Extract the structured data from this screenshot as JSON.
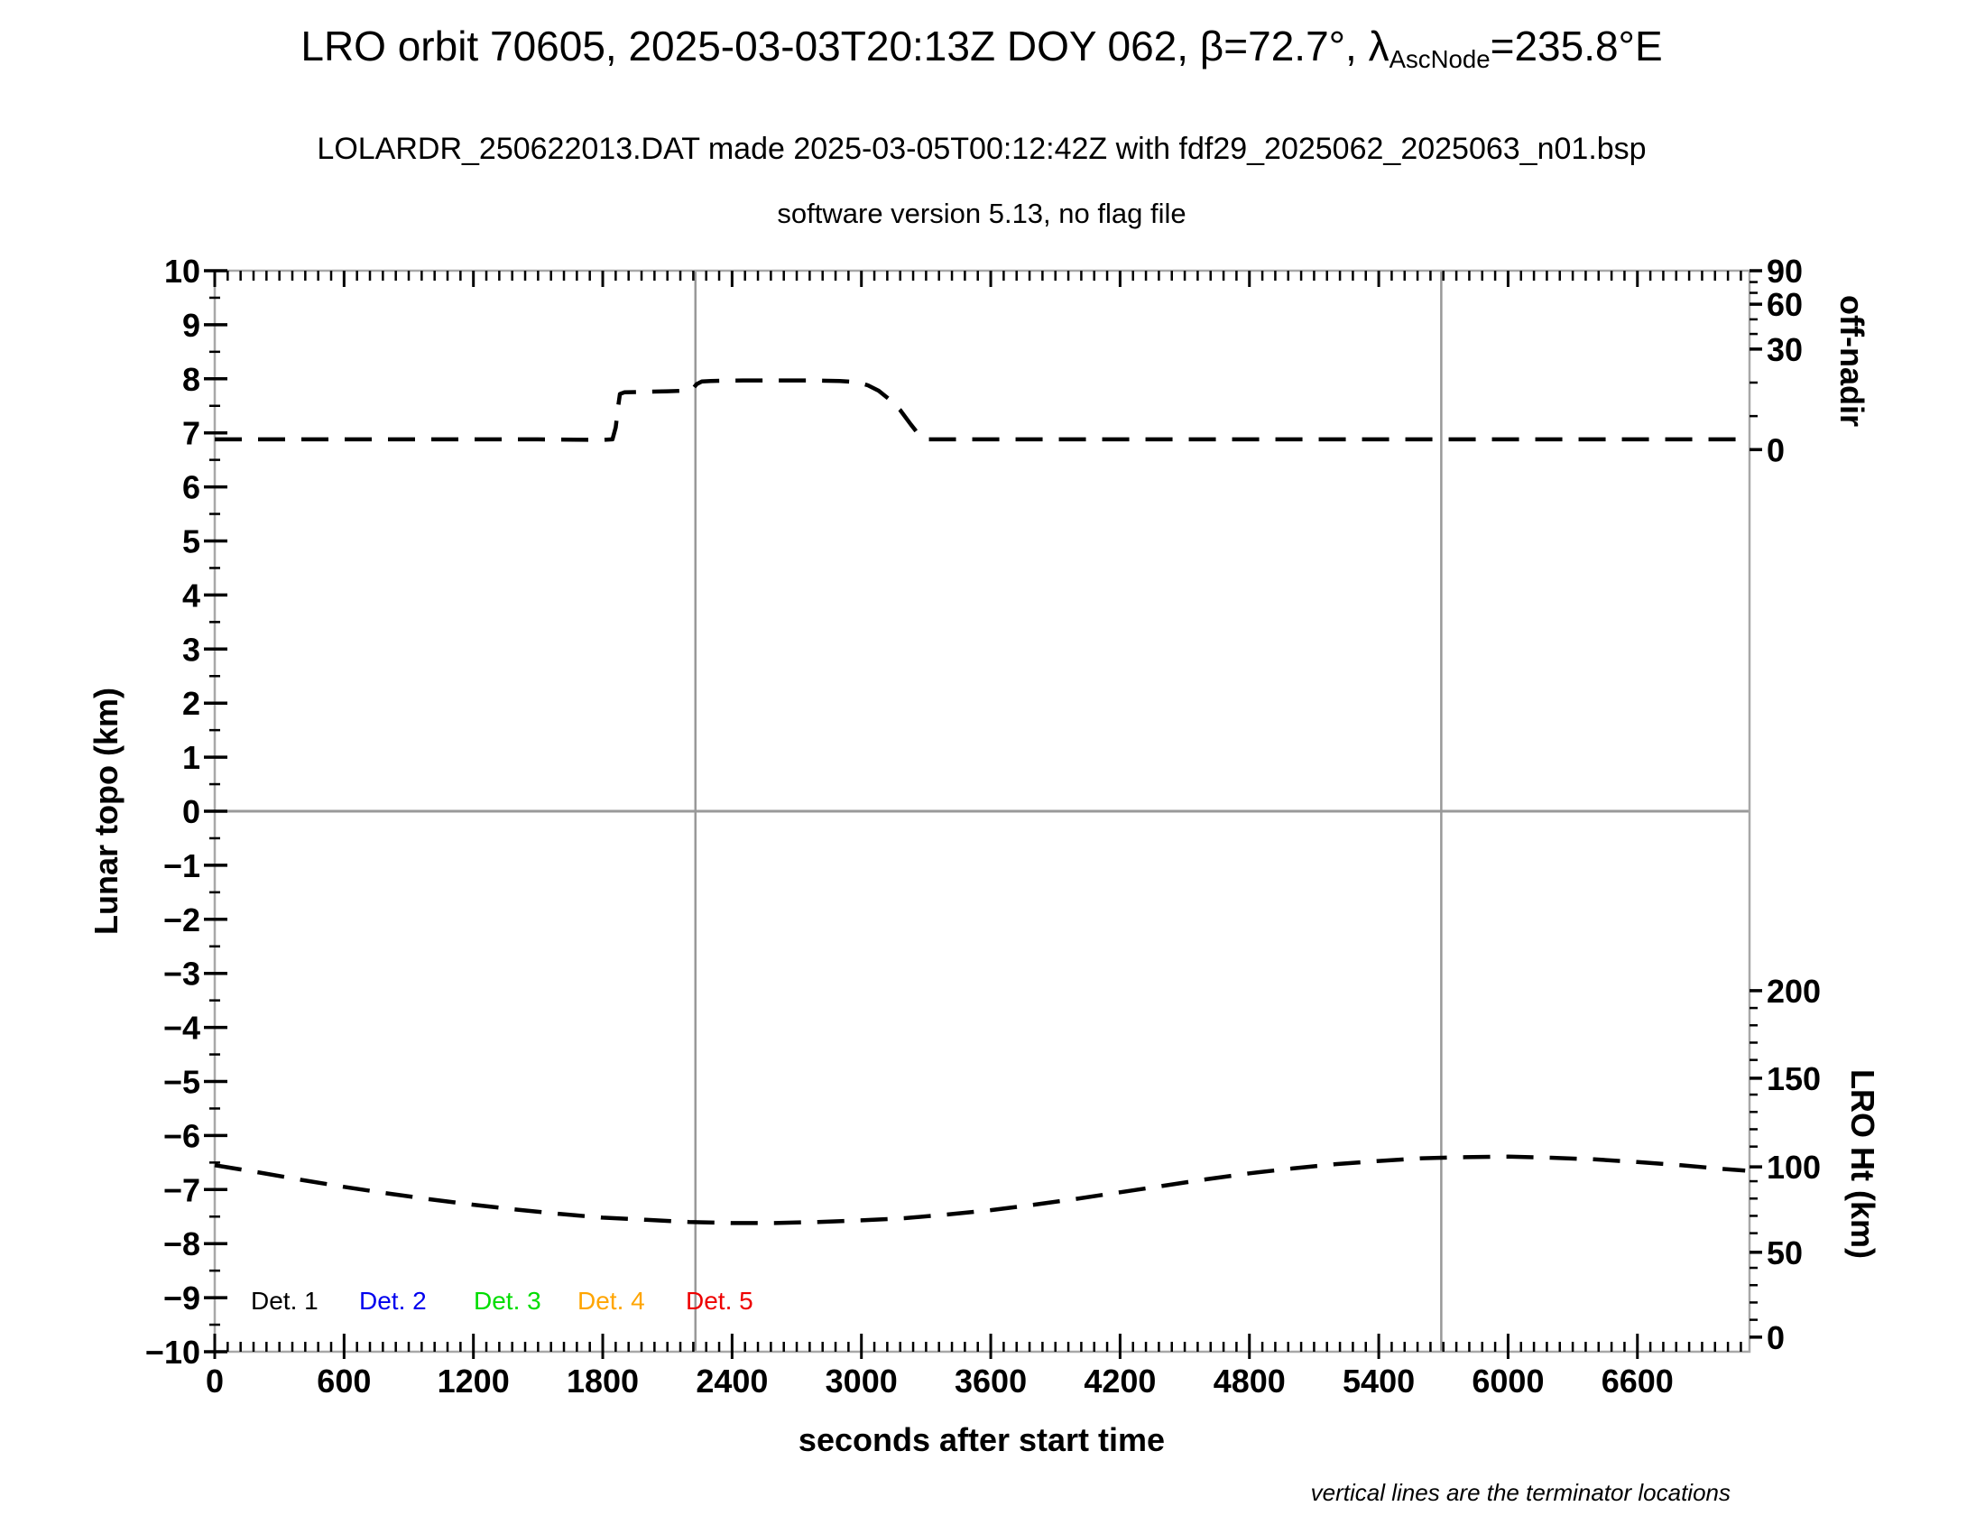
{
  "header": {
    "title_part1": "LRO orbit 70605, 2025-03-03T20:13Z DOY 062, β=72.7°, λ",
    "title_sub": "AscNode",
    "title_part2": "=235.8°E",
    "subtitle": "LOLARDR_250622013.DAT made 2025-03-05T00:12:42Z with fdf29_2025062_2025063_n01.bsp",
    "version_line": "software version 5.13, no flag file"
  },
  "chart_data": {
    "type": "line",
    "title": "LRO orbit 70605, 2025-03-03T20:13Z DOY 062, beta=72.7deg, lambda_AscNode=235.8degE",
    "xlabel": "seconds after start time",
    "ylabel_left": "Lunar topo (km)",
    "ylabel_right_top": "off-nadir",
    "ylabel_right_bottom": "LRO Ht (km)",
    "note": "vertical lines are the terminator locations",
    "grid": false,
    "x_axis": {
      "range": [
        0,
        7120
      ],
      "major_tick_step": 600,
      "minor_tick_step": 60,
      "major_ticks": [
        0,
        600,
        1200,
        1800,
        2400,
        3000,
        3600,
        4200,
        4800,
        5400,
        6000,
        6600
      ]
    },
    "y_axis_left": {
      "range": [
        -10,
        10
      ],
      "major_tick_step": 1,
      "minor_tick_step": 0.5,
      "major_ticks": [
        10,
        9,
        8,
        7,
        6,
        5,
        4,
        3,
        2,
        1,
        0,
        -1,
        -2,
        -3,
        -4,
        -5,
        -6,
        -7,
        -8,
        -9,
        -10
      ]
    },
    "y_axis_right_top": {
      "unit": "degrees off-nadir",
      "nonlinear": true,
      "ticks": [
        {
          "label": "90",
          "topo": 10.0
        },
        {
          "label": "60",
          "topo": 9.38
        },
        {
          "label": "30",
          "topo": 8.55
        },
        {
          "label": "0",
          "topo": 6.69
        }
      ],
      "minor_ticks_topo": [
        9.79,
        9.59,
        9.1,
        8.83,
        7.93,
        7.31
      ]
    },
    "y_axis_right_bottom": {
      "unit": "km",
      "nonlinear": false,
      "ticks": [
        {
          "label": "200",
          "topo": -3.32
        },
        {
          "label": "150",
          "topo": -4.94
        },
        {
          "label": "100",
          "topo": -6.58
        },
        {
          "label": "50",
          "topo": -8.16
        },
        {
          "label": "0",
          "topo": -9.73
        }
      ],
      "minor_step_km": 10,
      "km_per_topo_unit": 31.2
    },
    "terminator_lines_s": [
      2230,
      5690
    ],
    "zero_line_topo": 0,
    "series": [
      {
        "name": "off-nadir angle (plotted on Lunar topo axis)",
        "style": "dashed",
        "color": "#000000",
        "readings_deg": {
          "baseline": 3,
          "first_plateau": 17.5,
          "max_plateau": 20.6,
          "slew_start_s": 1860,
          "step_up_s": 2230,
          "slew_end_s": 3290
        },
        "points": [
          [
            0,
            6.88
          ],
          [
            300,
            6.88
          ],
          [
            600,
            6.88
          ],
          [
            900,
            6.88
          ],
          [
            1200,
            6.88
          ],
          [
            1500,
            6.88
          ],
          [
            1800,
            6.87
          ],
          [
            1845,
            6.88
          ],
          [
            1860,
            7.1
          ],
          [
            1872,
            7.5
          ],
          [
            1880,
            7.72
          ],
          [
            1900,
            7.75
          ],
          [
            2000,
            7.76
          ],
          [
            2100,
            7.77
          ],
          [
            2180,
            7.78
          ],
          [
            2215,
            7.8
          ],
          [
            2235,
            7.9
          ],
          [
            2260,
            7.95
          ],
          [
            2300,
            7.96
          ],
          [
            2450,
            7.97
          ],
          [
            2600,
            7.97
          ],
          [
            2750,
            7.97
          ],
          [
            2900,
            7.96
          ],
          [
            2980,
            7.94
          ],
          [
            3030,
            7.88
          ],
          [
            3080,
            7.78
          ],
          [
            3130,
            7.62
          ],
          [
            3180,
            7.42
          ],
          [
            3230,
            7.15
          ],
          [
            3270,
            6.95
          ],
          [
            3295,
            6.88
          ],
          [
            3500,
            6.88
          ],
          [
            3800,
            6.88
          ],
          [
            4100,
            6.88
          ],
          [
            4400,
            6.88
          ],
          [
            4700,
            6.88
          ],
          [
            5000,
            6.88
          ],
          [
            5300,
            6.88
          ],
          [
            5600,
            6.88
          ],
          [
            5900,
            6.88
          ],
          [
            6200,
            6.88
          ],
          [
            6500,
            6.88
          ],
          [
            6800,
            6.88
          ],
          [
            7000,
            6.88
          ],
          [
            7100,
            6.88
          ]
        ]
      },
      {
        "name": "LRO height (plotted on Lunar topo axis)",
        "style": "dashed",
        "color": "#000000",
        "readings_km": {
          "start": 99,
          "min": 66,
          "min_at_s": 2500,
          "max": 104,
          "max_at_s": 6000,
          "end": 96
        },
        "points": [
          [
            0,
            -6.55
          ],
          [
            200,
            -6.68
          ],
          [
            400,
            -6.82
          ],
          [
            600,
            -6.95
          ],
          [
            800,
            -7.07
          ],
          [
            1000,
            -7.18
          ],
          [
            1200,
            -7.28
          ],
          [
            1400,
            -7.37
          ],
          [
            1600,
            -7.45
          ],
          [
            1800,
            -7.52
          ],
          [
            2000,
            -7.56
          ],
          [
            2200,
            -7.6
          ],
          [
            2400,
            -7.62
          ],
          [
            2600,
            -7.62
          ],
          [
            2800,
            -7.6
          ],
          [
            3000,
            -7.57
          ],
          [
            3200,
            -7.53
          ],
          [
            3400,
            -7.46
          ],
          [
            3600,
            -7.38
          ],
          [
            3800,
            -7.28
          ],
          [
            4000,
            -7.17
          ],
          [
            4200,
            -7.05
          ],
          [
            4400,
            -6.93
          ],
          [
            4600,
            -6.81
          ],
          [
            4800,
            -6.7
          ],
          [
            5000,
            -6.61
          ],
          [
            5200,
            -6.53
          ],
          [
            5400,
            -6.47
          ],
          [
            5600,
            -6.42
          ],
          [
            5800,
            -6.4
          ],
          [
            6000,
            -6.39
          ],
          [
            6200,
            -6.41
          ],
          [
            6400,
            -6.44
          ],
          [
            6600,
            -6.49
          ],
          [
            6800,
            -6.55
          ],
          [
            7000,
            -6.62
          ],
          [
            7100,
            -6.65
          ]
        ]
      }
    ],
    "legend": [
      {
        "label": "Det. 1",
        "color": "#000000"
      },
      {
        "label": "Det. 2",
        "color": "#0000ee"
      },
      {
        "label": "Det. 3",
        "color": "#00dd00"
      },
      {
        "label": "Det. 4",
        "color": "#ffa500"
      },
      {
        "label": "Det. 5",
        "color": "#ee0000"
      }
    ],
    "colors": {
      "axis_box": "#a8a8a8",
      "guide_lines": "#999999",
      "curves": "#000000",
      "text": "#000000"
    }
  }
}
